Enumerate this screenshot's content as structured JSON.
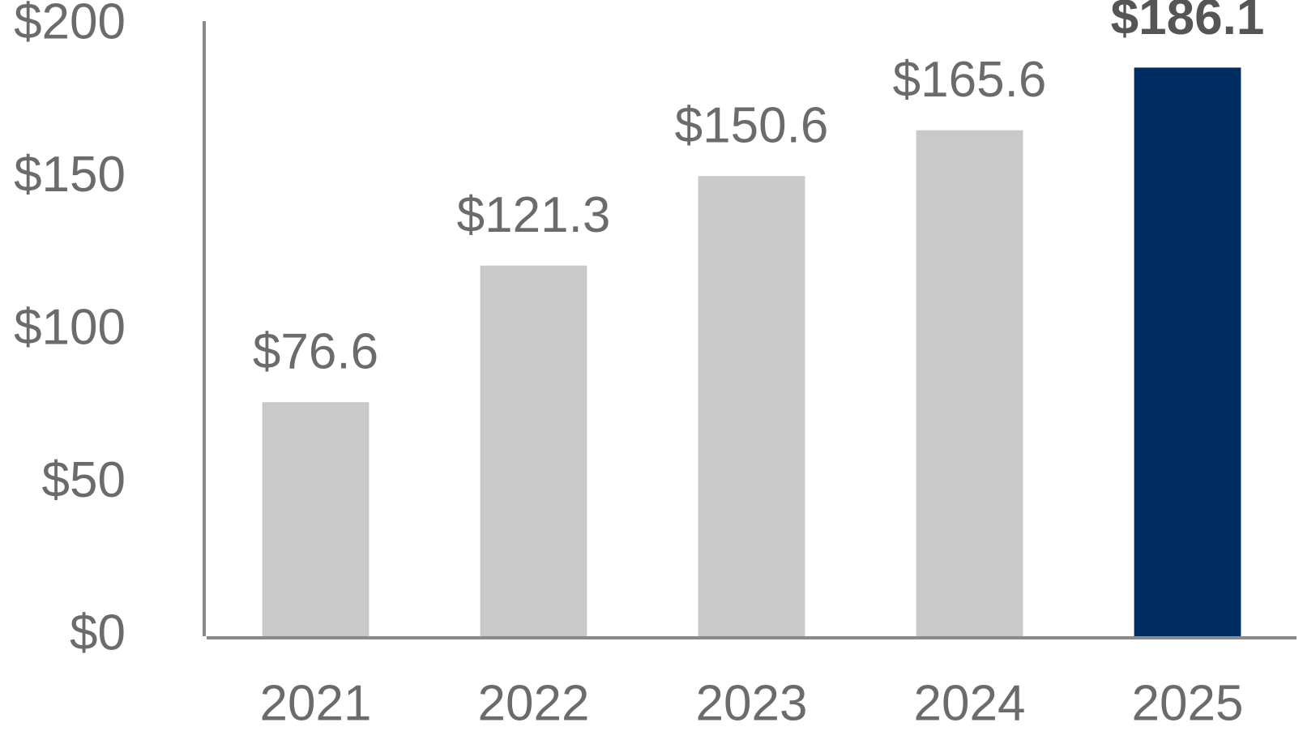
{
  "chart_data": {
    "type": "bar",
    "categories": [
      "2021",
      "2022",
      "2023",
      "2024",
      "2025"
    ],
    "values": [
      76.6,
      121.3,
      150.6,
      165.6,
      186.1
    ],
    "value_labels": [
      "$76.6",
      "$121.3",
      "$150.6",
      "$165.6",
      "$186.1"
    ],
    "colors": [
      "#c9c9c9",
      "#c9c9c9",
      "#c9c9c9",
      "#c9c9c9",
      "#002d62"
    ],
    "label_weights": [
      "normal",
      "normal",
      "normal",
      "normal",
      "bold"
    ],
    "ylim": [
      0,
      200
    ],
    "yticks": [
      {
        "value": 0,
        "label": "$0"
      },
      {
        "value": 50,
        "label": "$50"
      },
      {
        "value": 100,
        "label": "$100"
      },
      {
        "value": 150,
        "label": "$150"
      },
      {
        "value": 200,
        "label": "$200"
      }
    ],
    "grid": false
  }
}
